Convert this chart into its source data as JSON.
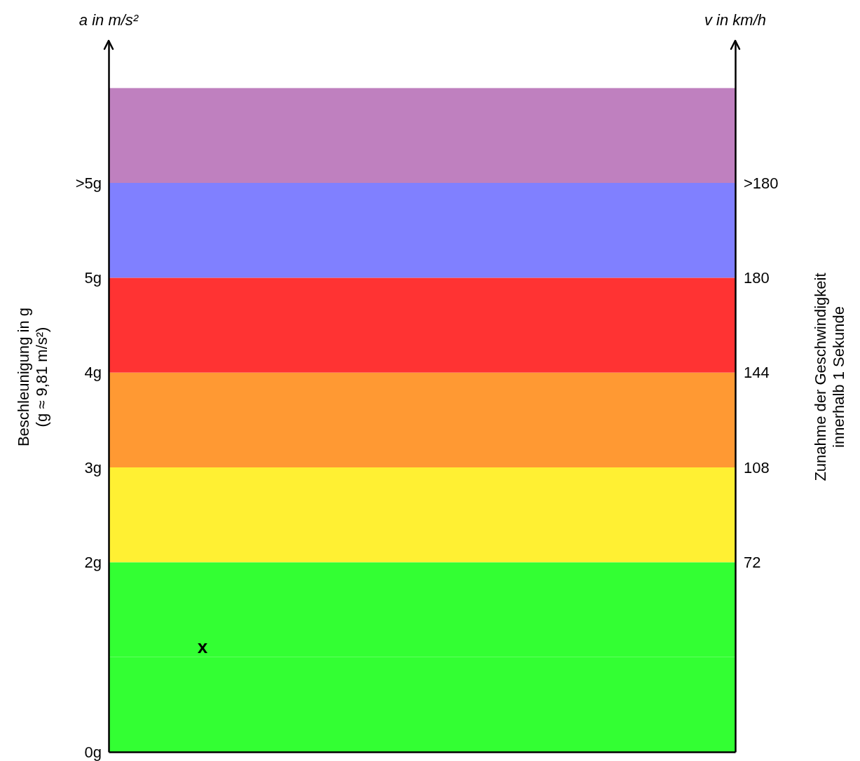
{
  "chart_data": {
    "type": "bar",
    "stacked": true,
    "categories": [
      null
    ],
    "ylabel": "Beschleunigung in g\n(g ≈ 9,81 m/s²)",
    "y2label": "Zunahme der Geschwindigkeit\ninnerhalb 1 Sekunde",
    "annotations": [
      "a in m/s²",
      "v in km/h",
      "x"
    ],
    "ylim": [
      0,
      7.5
    ],
    "yticks": [
      {
        "value": 0,
        "label": "0g"
      },
      {
        "value": 2,
        "label": "2g"
      },
      {
        "value": 3,
        "label": "3g"
      },
      {
        "value": 4,
        "label": "4g"
      },
      {
        "value": 5,
        "label": "5g"
      },
      {
        "value": 6,
        "label": ">5g"
      }
    ],
    "y2lim": [
      0,
      270
    ],
    "y2ticks": [
      72,
      108,
      144,
      180,
      {
        "value": 216,
        "label": ">180"
      }
    ],
    "series": [
      {
        "color": "#33ff33",
        "values": [
          1
        ]
      },
      {
        "color": "#33ff33",
        "values": [
          1
        ]
      },
      {
        "color": "#fff033",
        "values": [
          1
        ]
      },
      {
        "color": "#ff9933",
        "values": [
          1
        ]
      },
      {
        "color": "#ff3333",
        "values": [
          1
        ]
      },
      {
        "color": "#8080ff",
        "values": [
          1
        ]
      },
      {
        "color": "#bf80bf",
        "values": [
          1
        ]
      }
    ]
  }
}
